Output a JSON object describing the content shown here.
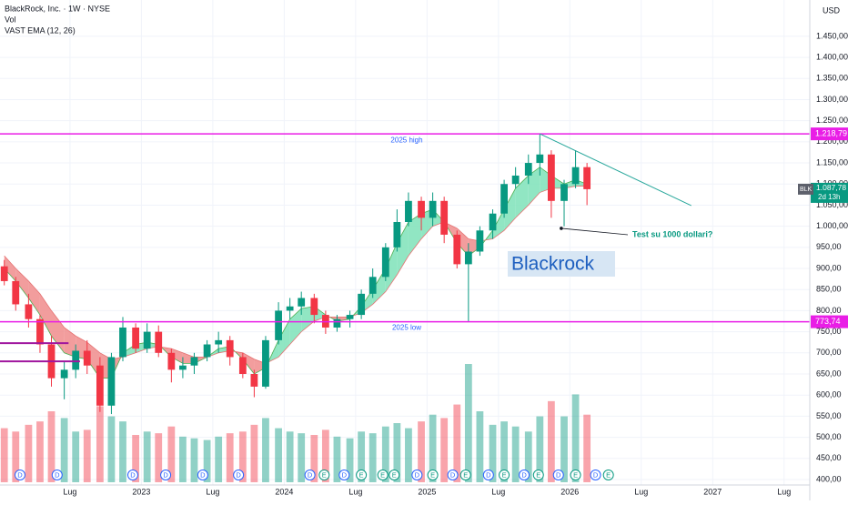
{
  "chart_data": {
    "type": "candlestick",
    "title": "BlackRock, Inc. · 1W · NYSE",
    "currency": "USD",
    "x": [
      2022.04,
      2022.12,
      2022.21,
      2022.29,
      2022.37,
      2022.46,
      2022.54,
      2022.62,
      2022.71,
      2022.79,
      2022.87,
      2022.96,
      2023.04,
      2023.12,
      2023.21,
      2023.29,
      2023.37,
      2023.46,
      2023.54,
      2023.62,
      2023.71,
      2023.79,
      2023.87,
      2023.96,
      2024.04,
      2024.12,
      2024.21,
      2024.29,
      2024.37,
      2024.46,
      2024.54,
      2024.62,
      2024.71,
      2024.79,
      2024.87,
      2024.96,
      2025.04,
      2025.12,
      2025.21,
      2025.29,
      2025.37,
      2025.46,
      2025.54,
      2025.62,
      2025.71,
      2025.79,
      2025.87,
      2025.96,
      2026.04,
      2026.12
    ],
    "open": [
      905,
      870,
      815,
      780,
      720,
      640,
      660,
      705,
      670,
      575,
      690,
      760,
      710,
      750,
      700,
      660,
      670,
      690,
      720,
      730,
      690,
      650,
      620,
      730,
      800,
      810,
      830,
      790,
      760,
      780,
      790,
      840,
      880,
      950,
      1010,
      1060,
      1020,
      1060,
      980,
      910,
      940,
      990,
      1030,
      1100,
      1120,
      1150,
      1170,
      1060,
      1100,
      1140
    ],
    "high": [
      920,
      880,
      840,
      790,
      740,
      680,
      720,
      730,
      690,
      700,
      785,
      770,
      770,
      765,
      710,
      690,
      700,
      730,
      750,
      740,
      700,
      660,
      740,
      820,
      830,
      845,
      840,
      800,
      790,
      800,
      850,
      900,
      960,
      1040,
      1080,
      1070,
      1080,
      1070,
      990,
      960,
      1000,
      1040,
      1110,
      1140,
      1170,
      1219,
      1180,
      1110,
      1180,
      1150
    ],
    "low": [
      860,
      800,
      760,
      700,
      620,
      590,
      640,
      650,
      560,
      555,
      680,
      700,
      700,
      690,
      630,
      640,
      650,
      680,
      700,
      670,
      640,
      595,
      615,
      720,
      780,
      790,
      770,
      745,
      750,
      760,
      780,
      830,
      870,
      940,
      1000,
      990,
      1000,
      960,
      900,
      775,
      930,
      970,
      1020,
      1090,
      1100,
      1120,
      1020,
      1000,
      1090,
      1050
    ],
    "close": [
      870,
      815,
      780,
      720,
      640,
      660,
      705,
      670,
      575,
      690,
      760,
      710,
      750,
      700,
      660,
      670,
      690,
      720,
      730,
      690,
      650,
      620,
      730,
      800,
      810,
      830,
      790,
      760,
      780,
      790,
      840,
      880,
      950,
      1010,
      1060,
      1020,
      1060,
      980,
      910,
      940,
      990,
      1030,
      1100,
      1120,
      1150,
      1170,
      1060,
      1100,
      1140,
      1087.78
    ],
    "up_color": "#089981",
    "down_color": "#f23645",
    "volume": {
      "name": "Vol",
      "values": [
        3.2,
        3.0,
        3.4,
        3.6,
        4.2,
        3.8,
        3.0,
        3.1,
        4.5,
        3.9,
        3.6,
        2.8,
        3.0,
        2.9,
        3.3,
        2.7,
        2.6,
        2.5,
        2.7,
        2.9,
        3.0,
        3.4,
        3.8,
        3.2,
        3.0,
        2.9,
        2.8,
        3.1,
        2.7,
        2.6,
        3.0,
        2.9,
        3.3,
        3.5,
        3.2,
        3.6,
        4.0,
        3.8,
        4.6,
        7.0,
        4.2,
        3.4,
        3.6,
        3.3,
        3.0,
        3.9,
        4.8,
        3.9,
        5.2,
        4.0
      ]
    },
    "ema": {
      "name": "VAST EMA (12, 26)",
      "up_color": "#7ee2b8",
      "down_color": "#f08c8c",
      "fast": [
        900,
        870,
        830,
        790,
        740,
        700,
        690,
        685,
        640,
        640,
        700,
        720,
        725,
        720,
        690,
        675,
        675,
        690,
        710,
        715,
        685,
        650,
        665,
        730,
        780,
        805,
        810,
        790,
        775,
        780,
        810,
        850,
        900,
        960,
        1010,
        1030,
        1040,
        1010,
        960,
        930,
        950,
        990,
        1040,
        1090,
        1120,
        1140,
        1120,
        1100,
        1110,
        1100
      ],
      "slow": [
        930,
        900,
        870,
        840,
        800,
        760,
        740,
        725,
        700,
        685,
        690,
        700,
        710,
        715,
        710,
        700,
        690,
        690,
        700,
        705,
        700,
        685,
        675,
        690,
        720,
        750,
        775,
        785,
        785,
        785,
        795,
        815,
        845,
        885,
        930,
        970,
        1000,
        1010,
        995,
        970,
        965,
        970,
        990,
        1020,
        1050,
        1080,
        1090,
        1090,
        1095,
        1095
      ]
    },
    "xlim": [
      2022.01,
      2027.68
    ],
    "xticks": [
      {
        "value": 2022.5,
        "label": "Lug"
      },
      2023,
      {
        "value": 2023.5,
        "label": "Lug"
      },
      2024,
      {
        "value": 2024.5,
        "label": "Lug"
      },
      2025,
      {
        "value": 2025.5,
        "label": "Lug"
      },
      2026,
      {
        "value": 2026.5,
        "label": "Lug"
      },
      2027,
      {
        "value": 2027.5,
        "label": "Lug"
      }
    ],
    "ylim": [
      387,
      1536
    ],
    "yticks": [
      {
        "value": 400,
        "label": "400,00"
      },
      {
        "value": 450,
        "label": "450,00"
      },
      {
        "value": 500,
        "label": "500,00"
      },
      {
        "value": 550,
        "label": "550,00"
      },
      {
        "value": 600,
        "label": "600,00"
      },
      {
        "value": 650,
        "label": "650,00"
      },
      {
        "value": 700,
        "label": "700,00"
      },
      {
        "value": 750,
        "label": "750,00"
      },
      {
        "value": 800,
        "label": "800,00"
      },
      {
        "value": 850,
        "label": "850,00"
      },
      {
        "value": 900,
        "label": "900,00"
      },
      {
        "value": 950,
        "label": "950,00"
      },
      {
        "value": 1000,
        "label": "1.000,00"
      },
      {
        "value": 1050,
        "label": "1.050,00"
      },
      {
        "value": 1100,
        "label": "1.100,00"
      },
      {
        "value": 1150,
        "label": "1.150,00"
      },
      {
        "value": 1200,
        "label": "1.200,00"
      },
      {
        "value": 1250,
        "label": "1.250,00"
      },
      {
        "value": 1300,
        "label": "1.300,00"
      },
      {
        "value": 1350,
        "label": "1.350,00"
      },
      {
        "value": 1400,
        "label": "1.400,00"
      },
      {
        "value": 1450,
        "label": "1.450,00"
      }
    ],
    "grid": true,
    "price_lines": [
      {
        "value": 1218.79,
        "label": "1.218,79",
        "text": "2025 high",
        "color": "#e91ee6"
      },
      {
        "value": 773.74,
        "label": "773,74",
        "text": "2025 low",
        "color": "#e91ee6"
      }
    ],
    "levels": [
      {
        "value": 723,
        "x": [
          2022.01,
          2022.49
        ],
        "color": "#a0169e"
      },
      {
        "value": 680,
        "x": [
          2022.01,
          2022.57
        ],
        "color": "#a0169e"
      }
    ],
    "last": {
      "value": 1087.78,
      "label": "1.087,78",
      "symbol": "BLK",
      "countdown": "2d 13h"
    },
    "trendline": {
      "x": [
        2025.79,
        2026.85
      ],
      "values": [
        1219,
        1049
      ],
      "color": "#26a69a"
    },
    "annotation": {
      "text": "Test su 1000 dollari?",
      "x": 2025.94,
      "value": 995
    },
    "watermark": "Blackrock",
    "events": {
      "x": [
        2022.15,
        2022.41,
        2022.94,
        2023.17,
        2023.43,
        2023.68,
        2024.18,
        2024.28,
        2024.42,
        2024.54,
        2024.69,
        2024.77,
        2024.93,
        2025.04,
        2025.18,
        2025.27,
        2025.43,
        2025.54,
        2025.68,
        2025.78,
        2025.92,
        2026.04,
        2026.18,
        2026.27
      ],
      "labels": [
        "D",
        "D",
        "D",
        "D",
        "D",
        "D",
        "D",
        "E",
        "D",
        "E",
        "E",
        "E",
        "D",
        "E",
        "D",
        "E",
        "D",
        "E",
        "D",
        "E",
        "D",
        "E",
        "D",
        "E"
      ],
      "colors": {
        "D": "#2962ff",
        "E": "#089981"
      }
    }
  }
}
